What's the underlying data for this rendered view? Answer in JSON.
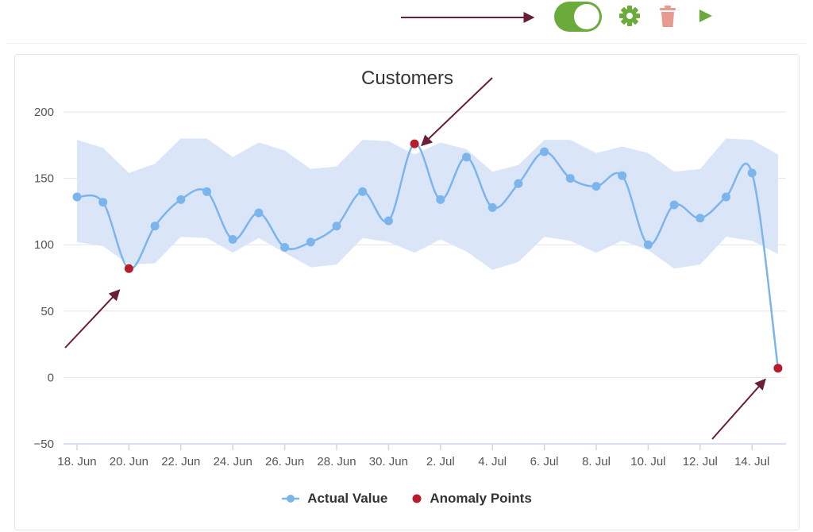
{
  "toolbar": {
    "toggle_state": "on",
    "icons": [
      "toggle-switch",
      "gear-icon",
      "trash-icon",
      "play-icon"
    ],
    "colors": {
      "toggle": "#6aab3b",
      "gear": "#6aab3b",
      "trash": "#e89a8e",
      "play": "#6aab3b"
    }
  },
  "chart_data": {
    "type": "line",
    "title": "Customers",
    "x": [
      "2018-06-18",
      "2018-06-19",
      "2018-06-20",
      "2018-06-21",
      "2018-06-22",
      "2018-06-23",
      "2018-06-24",
      "2018-06-25",
      "2018-06-26",
      "2018-06-27",
      "2018-06-28",
      "2018-06-29",
      "2018-06-30",
      "2018-07-01",
      "2018-07-02",
      "2018-07-03",
      "2018-07-04",
      "2018-07-05",
      "2018-07-06",
      "2018-07-07",
      "2018-07-08",
      "2018-07-09",
      "2018-07-10",
      "2018-07-11",
      "2018-07-12",
      "2018-07-13",
      "2018-07-14",
      "2018-07-15"
    ],
    "x_tick_labels": [
      "18. Jun",
      "20. Jun",
      "22. Jun",
      "24. Jun",
      "26. Jun",
      "28. Jun",
      "30. Jun",
      "2. Jul",
      "4. Jul",
      "6. Jul",
      "8. Jul",
      "10. Jul",
      "12. Jul",
      "14. Jul"
    ],
    "y_ticks": [
      "−50",
      "0",
      "50",
      "100",
      "150",
      "200"
    ],
    "ylim": [
      -50,
      200
    ],
    "series": [
      {
        "name": "Actual Value",
        "color": "#7cb5ec",
        "values": [
          136,
          132,
          82,
          114,
          134,
          140,
          104,
          124,
          98,
          102,
          114,
          140,
          118,
          176,
          134,
          166,
          128,
          146,
          170,
          150,
          144,
          152,
          100,
          130,
          120,
          136,
          154,
          7
        ]
      },
      {
        "name": "Anomaly Points",
        "color": "#b71c2c",
        "points": [
          {
            "x": "2018-06-20",
            "y": 82
          },
          {
            "x": "2018-07-01",
            "y": 176
          },
          {
            "x": "2018-07-15",
            "y": 7
          }
        ]
      }
    ],
    "band": {
      "color": "#dae6f7",
      "upper": [
        179,
        173,
        154,
        161,
        180,
        180,
        166,
        177,
        171,
        157,
        159,
        179,
        178,
        168,
        177,
        172,
        155,
        160,
        179,
        179,
        169,
        174,
        169,
        155,
        157,
        180,
        179,
        168
      ],
      "lower": [
        102,
        99,
        85,
        86,
        106,
        105,
        94,
        105,
        94,
        83,
        85,
        105,
        102,
        94,
        104,
        95,
        81,
        87,
        106,
        103,
        94,
        103,
        96,
        82,
        85,
        106,
        103,
        93
      ]
    },
    "annotations": [
      {
        "type": "arrow",
        "target": "2018-06-20",
        "color": "#6b1f36"
      },
      {
        "type": "arrow",
        "target": "2018-07-01",
        "color": "#6b1f36"
      },
      {
        "type": "arrow",
        "target": "2018-07-15",
        "color": "#6b1f36"
      },
      {
        "type": "arrow",
        "target": "toggle-switch",
        "color": "#6b1f36"
      }
    ],
    "grid": true,
    "legend": "bottom-center"
  },
  "legend": {
    "actual_label": "Actual Value",
    "anomaly_label": "Anomaly Points"
  }
}
